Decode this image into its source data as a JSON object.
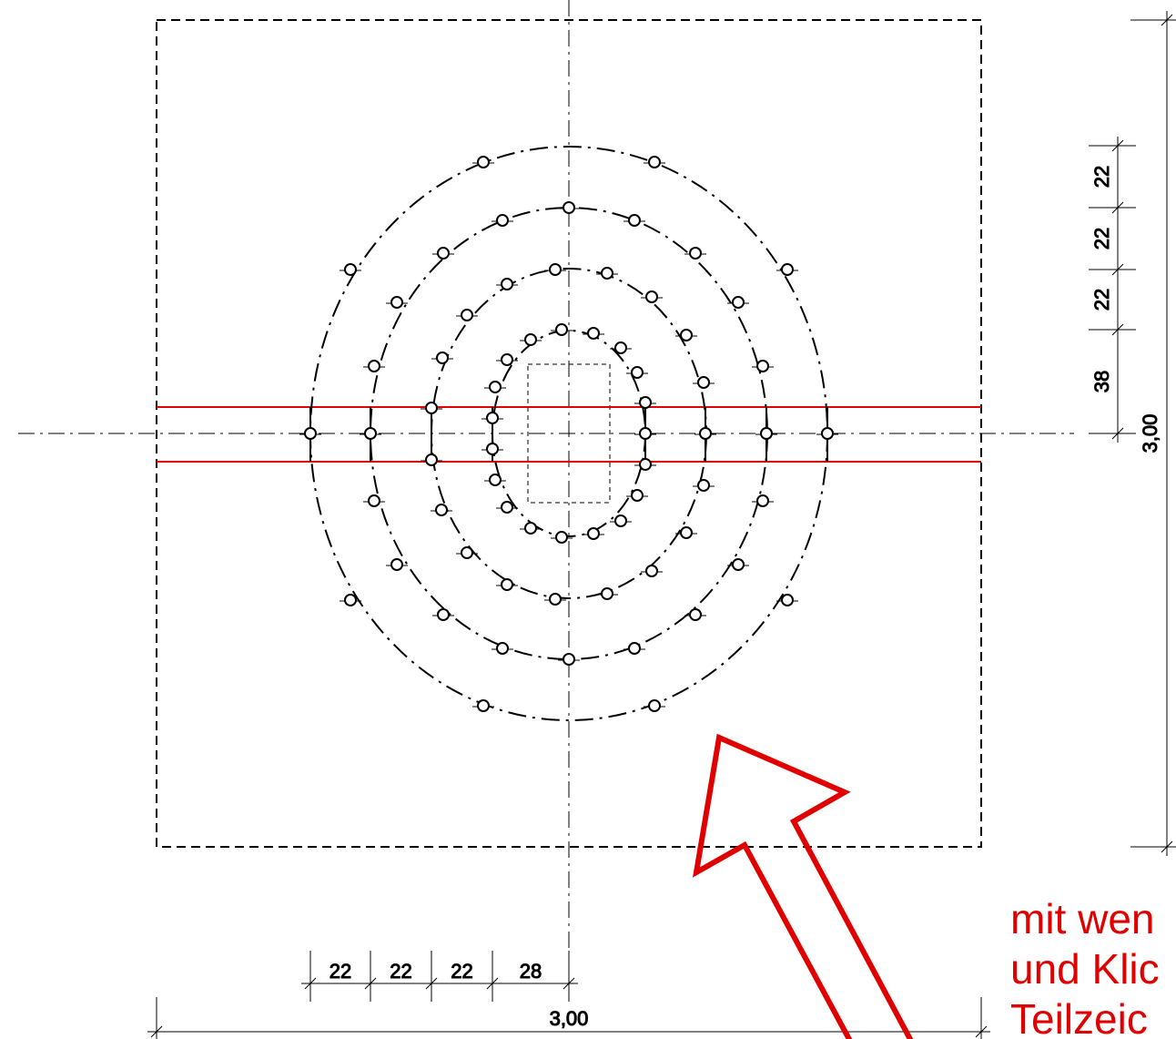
{
  "vertical_dimensions": {
    "segments": [
      "22",
      "22",
      "22",
      "38"
    ],
    "total": "3,00"
  },
  "horizontal_dimensions": {
    "segments": [
      "22",
      "22",
      "22",
      "28"
    ],
    "total": "3,00"
  },
  "annotation": {
    "lines": [
      "mit wen",
      "und Klic",
      "Teilzeic"
    ]
  }
}
